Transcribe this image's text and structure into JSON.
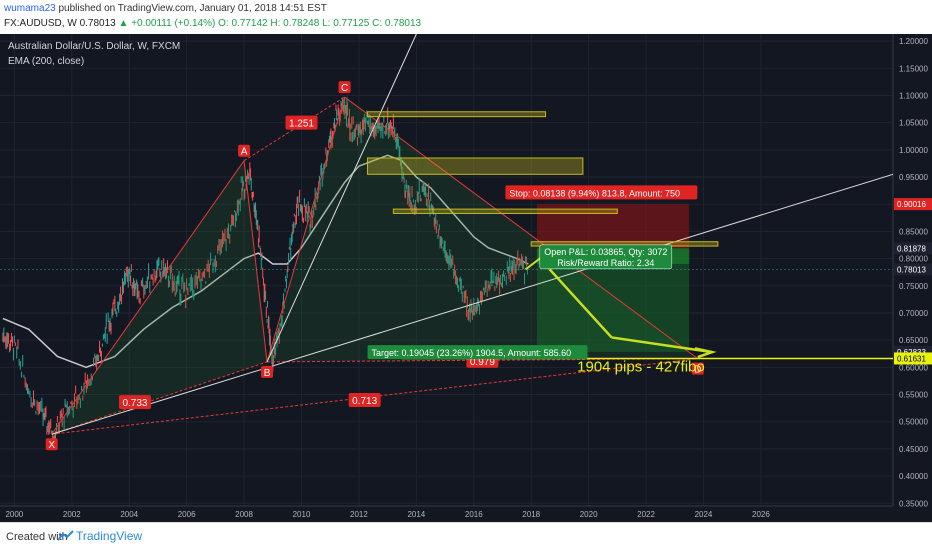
{
  "header": {
    "publisher": "wumama23",
    "published_text": "published on TradingView.com, January 01, 2018 14:51 EST",
    "symbol": "FX:AUDUSD, W",
    "last": "0.78013",
    "change": "+0.00111 (+0.14%)",
    "open": "O: 0.77142",
    "high": "H: 0.78248",
    "low": "L: 0.77125",
    "close": "C: 0.78013"
  },
  "legend": {
    "instrument": "Australian Dollar/U.S. Dollar, W, FXCM",
    "indicator": "EMA (200, close)"
  },
  "footer": {
    "created_with": "Created with",
    "brand": "TradingView"
  },
  "colors": {
    "background": "#131722",
    "pattern": "#e53935",
    "label_red": "#e02424",
    "target_green": "#1e8a3c",
    "ema": "#c8c8c8",
    "arrow": "#c6e020",
    "target_line": "#e8f20c",
    "zone": "#c8b91e"
  },
  "chart_data": {
    "type": "line",
    "title": "Australian Dollar/U.S. Dollar, W, FXCM",
    "x_ticks": [
      "2000",
      "2002",
      "2004",
      "2006",
      "2008",
      "2010",
      "2012",
      "2014",
      "2016",
      "2018",
      "2020",
      "2022",
      "2024",
      "2026"
    ],
    "y_ticks": [
      "1.20000",
      "1.15000",
      "1.10000",
      "1.05000",
      "1.00000",
      "0.95000",
      "0.90000",
      "0.85000",
      "0.80000",
      "0.75000",
      "0.70000",
      "0.65000",
      "0.60000",
      "0.55000",
      "0.50000",
      "0.45000",
      "0.40000",
      "0.35000"
    ],
    "ylim": [
      0.345,
      1.213
    ],
    "xlim": [
      1999.5,
      2030.6
    ],
    "series": [
      {
        "name": "FX:AUDUSD",
        "x": [
          1999.6,
          2000.0,
          2000.5,
          2001.0,
          2001.4,
          2001.8,
          2002.3,
          2002.8,
          2003.2,
          2003.6,
          2004.0,
          2004.3,
          2004.8,
          2005.2,
          2005.6,
          2006.0,
          2006.5,
          2007.0,
          2007.5,
          2007.9,
          2008.2,
          2008.5,
          2008.8,
          2009.0,
          2009.3,
          2009.6,
          2009.9,
          2010.3,
          2010.6,
          2010.9,
          2011.2,
          2011.5,
          2011.7,
          2012.0,
          2012.3,
          2012.6,
          2013.0,
          2013.3,
          2013.6,
          2013.9,
          2014.3,
          2014.6,
          2014.9,
          2015.3,
          2015.7,
          2016.0,
          2016.4,
          2016.8,
          2017.2,
          2017.5,
          2017.9
        ],
        "values": [
          0.66,
          0.64,
          0.56,
          0.51,
          0.48,
          0.52,
          0.55,
          0.6,
          0.67,
          0.72,
          0.78,
          0.73,
          0.77,
          0.78,
          0.75,
          0.74,
          0.76,
          0.8,
          0.85,
          0.92,
          0.96,
          0.85,
          0.7,
          0.62,
          0.68,
          0.82,
          0.9,
          0.87,
          0.93,
          1.0,
          1.06,
          1.08,
          1.04,
          1.03,
          1.05,
          1.03,
          1.05,
          1.03,
          0.93,
          0.9,
          0.93,
          0.88,
          0.83,
          0.78,
          0.72,
          0.7,
          0.75,
          0.76,
          0.77,
          0.79,
          0.78
        ]
      },
      {
        "name": "EMA (200, close)",
        "x": [
          1999.6,
          2000.5,
          2001.5,
          2002.5,
          2003.5,
          2004.5,
          2005.5,
          2006.5,
          2007.5,
          2008.0,
          2008.5,
          2009.0,
          2009.5,
          2010.0,
          2010.5,
          2011.0,
          2011.5,
          2012.0,
          2012.5,
          2013.0,
          2013.5,
          2014.0,
          2014.5,
          2015.0,
          2015.5,
          2016.0,
          2016.5,
          2017.0,
          2017.5,
          2017.9
        ],
        "values": [
          0.69,
          0.67,
          0.62,
          0.6,
          0.62,
          0.67,
          0.71,
          0.74,
          0.78,
          0.8,
          0.81,
          0.79,
          0.79,
          0.82,
          0.86,
          0.9,
          0.94,
          0.97,
          0.98,
          0.99,
          0.98,
          0.95,
          0.93,
          0.9,
          0.87,
          0.84,
          0.82,
          0.81,
          0.8,
          0.79
        ]
      }
    ],
    "pattern_points": [
      {
        "label": "X",
        "x": 2001.3,
        "y": 0.477
      },
      {
        "label": "A",
        "x": 2008.0,
        "y": 0.98
      },
      {
        "label": "B",
        "x": 2008.8,
        "y": 0.61
      },
      {
        "label": "C",
        "x": 2011.5,
        "y": 1.097
      },
      {
        "label": "D",
        "x": 2023.8,
        "y": 0.616
      }
    ],
    "ratios": [
      {
        "label": "0.733",
        "x": 2004.2,
        "y": 0.536
      },
      {
        "label": "1.251",
        "x": 2010.0,
        "y": 1.05
      },
      {
        "label": "0.979",
        "x": 2016.3,
        "y": 0.612
      },
      {
        "label": "0.713",
        "x": 2012.2,
        "y": 0.54
      }
    ],
    "price_labels": [
      {
        "label": "0.90016",
        "y": 0.90016,
        "color": "#e02424"
      },
      {
        "label": "0.81878",
        "y": 0.81878,
        "color": "#1e2230"
      },
      {
        "label": "0.78013",
        "y": 0.78013,
        "color": "#1e2230"
      },
      {
        "label": "0.62833",
        "y": 0.62833,
        "color": "#1e2230"
      },
      {
        "label": "0.61631",
        "y": 0.61631,
        "color": "#e8f20c"
      }
    ],
    "position": {
      "stop_text": "Stop: 0.08138 (9.94%) 813.8, Amount: 750",
      "pnl_text": "Open P&L: 0.03865, Qty: 3072",
      "rr_text": "Risk/Reward Ratio: 2.34",
      "target_text": "Target: 0.19045 (23.26%) 1904.5, Amount: 585.60",
      "entry": 0.81878,
      "stop": 0.90016,
      "target": 0.62833,
      "x_start": 2018.2,
      "x_end": 2023.5
    },
    "annotation": "1904 pips - 427fibo",
    "zones": [
      {
        "x1": 2012.3,
        "x2": 2018.5,
        "y1": 1.07,
        "y2": 1.061
      },
      {
        "x1": 2012.3,
        "x2": 2019.8,
        "y1": 0.985,
        "y2": 0.955
      },
      {
        "x1": 2013.2,
        "x2": 2021.0,
        "y1": 0.891,
        "y2": 0.883
      },
      {
        "x1": 2018.0,
        "x2": 2024.5,
        "y1": 0.831,
        "y2": 0.823
      }
    ],
    "grid": true
  }
}
